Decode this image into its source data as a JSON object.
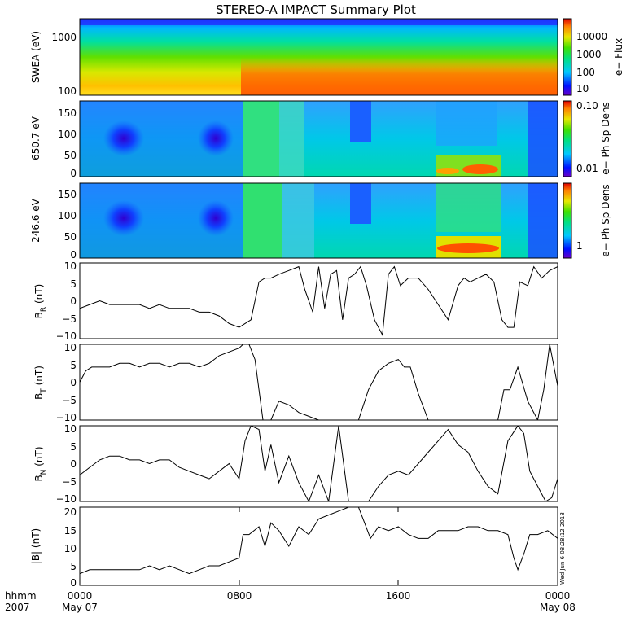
{
  "title": "STEREO-A IMPACT Summary Plot",
  "timestamp": "Wed Jun  6 08:28:12 2018",
  "xaxis": {
    "row1_label": "hhmm",
    "row2_label": "2007",
    "ticks": [
      "0000",
      "0800",
      "1600",
      "0000"
    ],
    "dates": [
      "May 07",
      "May 08"
    ],
    "range_hours": [
      0,
      24
    ]
  },
  "colorbars": {
    "swea": {
      "label": "e− Flux",
      "ticks": [
        "10000",
        "1000",
        "100",
        "10"
      ]
    },
    "pad1": {
      "label": "e− Ph Sp Dens",
      "ticks": [
        "0.10",
        "0.01"
      ]
    },
    "pad2": {
      "label": "e− Ph Sp Dens",
      "ticks": [
        "1"
      ]
    }
  },
  "panels": {
    "swea": {
      "ylabel": "SWEA (eV)",
      "ticks": [
        "1000",
        "100"
      ]
    },
    "pad1": {
      "ylabel": "650.7 eV",
      "ticks": [
        "150",
        "100",
        "50",
        "0"
      ]
    },
    "pad2": {
      "ylabel": "246.6 eV",
      "ticks": [
        "150",
        "100",
        "50",
        "0"
      ]
    },
    "br": {
      "ylabel_main": "B",
      "ylabel_sub": "R",
      "ylabel_unit": " (nT)",
      "ticks": [
        "10",
        "5",
        "0",
        "−5",
        "−10"
      ]
    },
    "bt": {
      "ylabel_main": "B",
      "ylabel_sub": "T",
      "ylabel_unit": " (nT)",
      "ticks": [
        "10",
        "5",
        "0",
        "−5",
        "−10"
      ]
    },
    "bn": {
      "ylabel_main": "B",
      "ylabel_sub": "N",
      "ylabel_unit": " (nT)",
      "ticks": [
        "10",
        "5",
        "0",
        "−5",
        "−10"
      ]
    },
    "bmag": {
      "ylabel": "|B| (nT)",
      "ticks": [
        "20",
        "15",
        "10",
        "5",
        "0"
      ]
    }
  },
  "colors": {
    "line": "#000000",
    "frame": "#000000"
  },
  "chart_data": [
    {
      "type": "heatmap",
      "name": "SWEA (eV)",
      "ylog": true,
      "ylim": [
        90,
        2000
      ],
      "description_bands": "high flux (orange) below ~150 eV after ~0800; flux decreasing with energy",
      "colorbar_log": true,
      "colorbar_range": [
        10,
        30000
      ]
    },
    {
      "type": "heatmap",
      "name": "650.7 eV",
      "ylim": [
        0,
        180
      ],
      "colorbar_log": true,
      "colorbar_range": [
        0.005,
        0.12
      ]
    },
    {
      "type": "heatmap",
      "name": "246.6 eV",
      "ylim": [
        0,
        180
      ],
      "colorbar_log": true,
      "colorbar_range": [
        0.4,
        3
      ]
    },
    {
      "type": "line",
      "name": "BR (nT)",
      "ylim": [
        -10,
        10
      ],
      "x": [
        0,
        0.5,
        1,
        1.5,
        2,
        2.5,
        3,
        3.5,
        4,
        4.5,
        5,
        5.5,
        6,
        6.5,
        7,
        7.5,
        8,
        8.3,
        8.6,
        9,
        9.3,
        9.6,
        10,
        10.5,
        11,
        11.3,
        11.7,
        12,
        12.3,
        12.6,
        12.9,
        13.2,
        13.5,
        13.8,
        14.1,
        14.4,
        14.8,
        15.2,
        15.5,
        15.8,
        16.1,
        16.5,
        17,
        17.5,
        18,
        18.5,
        19,
        19.3,
        19.6,
        20,
        20.4,
        20.8,
        21.2,
        21.5,
        21.8,
        22.1,
        22.5,
        22.8,
        23.2,
        23.6,
        24
      ],
      "y": [
        -2,
        -1,
        0,
        -1,
        -1,
        -1,
        -1,
        -2,
        -1,
        -2,
        -2,
        -2,
        -3,
        -3,
        -4,
        -6,
        -7,
        -6,
        -5,
        5,
        6,
        6,
        7,
        8,
        9,
        3,
        -3,
        9,
        -2,
        7,
        8,
        -5,
        6,
        7,
        9,
        4,
        -5,
        -9,
        7,
        9,
        4,
        6,
        6,
        3,
        -1,
        -5,
        4,
        6,
        5,
        6,
        7,
        5,
        -5,
        -7,
        -7,
        5,
        4,
        9,
        6,
        8,
        9
      ]
    },
    {
      "type": "line",
      "name": "BT (nT)",
      "ylim": [
        -10,
        10
      ],
      "x": [
        0,
        0.3,
        0.6,
        1,
        1.5,
        2,
        2.5,
        3,
        3.5,
        4,
        4.5,
        5,
        5.5,
        6,
        6.5,
        7,
        7.5,
        8,
        8.2,
        8.5,
        8.8,
        9.2,
        9.6,
        10,
        10.5,
        11,
        11.5,
        12,
        12.5,
        13,
        13.5,
        14,
        14.5,
        15,
        15.5,
        16,
        16.3,
        16.6,
        17,
        17.5,
        18,
        18.5,
        19,
        19.5,
        20,
        20.5,
        21,
        21.3,
        21.6,
        22,
        22.5,
        23,
        23.3,
        23.6,
        24
      ],
      "y": [
        0,
        3,
        4,
        4,
        4,
        5,
        5,
        4,
        5,
        5,
        4,
        5,
        5,
        4,
        5,
        7,
        8,
        9,
        10,
        10,
        6,
        -10,
        -10,
        -5,
        -6,
        -8,
        -9,
        -10,
        -10,
        -10,
        -10,
        -10,
        -2,
        3,
        5,
        6,
        4,
        4,
        -3,
        -10,
        -10,
        -10,
        -10,
        -10,
        -10,
        -10,
        -10,
        -2,
        -2,
        4,
        -5,
        -10,
        -2,
        10,
        -1
      ]
    },
    {
      "type": "line",
      "name": "BN (nT)",
      "ylim": [
        -10,
        10
      ],
      "x": [
        0,
        0.5,
        1,
        1.5,
        2,
        2.5,
        3,
        3.5,
        4,
        4.5,
        5,
        5.5,
        6,
        6.5,
        7,
        7.5,
        8,
        8.3,
        8.6,
        9,
        9.3,
        9.6,
        10,
        10.5,
        11,
        11.5,
        12,
        12.5,
        13,
        13.5,
        14,
        14.5,
        15,
        15.5,
        16,
        16.5,
        17,
        17.5,
        18,
        18.5,
        19,
        19.5,
        20,
        20.5,
        21,
        21.5,
        22,
        22.3,
        22.6,
        23,
        23.4,
        23.7,
        24
      ],
      "y": [
        -3,
        -1,
        1,
        2,
        2,
        1,
        1,
        0,
        1,
        1,
        -1,
        -2,
        -3,
        -4,
        -2,
        0,
        -4,
        6,
        10,
        9,
        -2,
        5,
        -5,
        2,
        -5,
        -10,
        -3,
        -10,
        10,
        -10,
        -10,
        -10,
        -6,
        -3,
        -2,
        -3,
        0,
        3,
        6,
        9,
        5,
        3,
        -2,
        -6,
        -8,
        6,
        10,
        8,
        -2,
        -6,
        -10,
        -9,
        -4
      ]
    },
    {
      "type": "line",
      "name": "|B| (nT)",
      "ylim": [
        0,
        20
      ],
      "x": [
        0,
        0.5,
        1,
        1.5,
        2,
        2.5,
        3,
        3.5,
        4,
        4.5,
        5,
        5.5,
        6,
        6.5,
        7,
        7.5,
        8,
        8.2,
        8.5,
        9,
        9.3,
        9.6,
        10,
        10.5,
        11,
        11.5,
        12,
        12.5,
        13,
        13.5,
        14,
        14.3,
        14.6,
        15,
        15.5,
        16,
        16.5,
        17,
        17.5,
        18,
        18.5,
        19,
        19.5,
        20,
        20.5,
        21,
        21.5,
        21.8,
        22,
        22.3,
        22.6,
        23,
        23.5,
        24
      ],
      "y": [
        3,
        4,
        4,
        4,
        4,
        4,
        4,
        5,
        4,
        5,
        4,
        3,
        4,
        5,
        5,
        6,
        7,
        13,
        13,
        15,
        10,
        16,
        14,
        10,
        15,
        13,
        17,
        18,
        19,
        20,
        20,
        16,
        12,
        15,
        14,
        15,
        13,
        12,
        12,
        14,
        14,
        14,
        15,
        15,
        14,
        14,
        13,
        7,
        4,
        8,
        13,
        13,
        14,
        12
      ]
    }
  ]
}
